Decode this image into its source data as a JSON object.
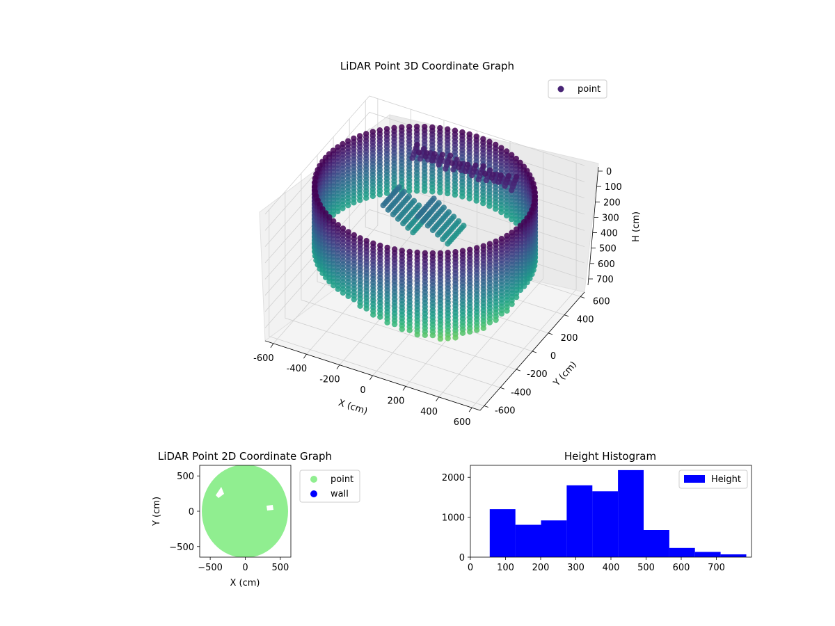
{
  "chart_data": [
    {
      "type": "scatter",
      "title": "LiDAR Point 3D Coordinate Graph",
      "xlabel": "X (cm)",
      "ylabel": "Y (cm)",
      "zlabel": "H (cm)",
      "xlim": [
        -650,
        650
      ],
      "ylim": [
        -650,
        650
      ],
      "zlim": [
        780,
        0
      ],
      "x_ticks": [
        -600,
        -400,
        -200,
        0,
        200,
        400,
        600
      ],
      "y_ticks": [
        -600,
        -400,
        -200,
        0,
        200,
        400,
        600
      ],
      "z_ticks": [
        0,
        100,
        200,
        300,
        400,
        500,
        600,
        700
      ],
      "legend": {
        "entries": [
          "point"
        ],
        "placement": "upper-right"
      },
      "colormap": "viridis",
      "ring_radius_cm": 600,
      "ring_height_cm": [
        0,
        400
      ],
      "grid": true
    },
    {
      "type": "scatter",
      "title": "LiDAR Point 2D Coordinate Graph",
      "xlabel": "X (cm)",
      "ylabel": "Y (cm)",
      "xlim": [
        -650,
        650
      ],
      "ylim": [
        -650,
        650
      ],
      "x_ticks": [
        -500,
        0,
        500
      ],
      "y_ticks": [
        -500,
        0,
        500
      ],
      "series": [
        {
          "name": "point",
          "color": "#90ee90",
          "shape": "disc",
          "radius_cm": 600
        },
        {
          "name": "wall",
          "color": "#0000ff",
          "points": []
        }
      ],
      "legend": {
        "placement": "outside-right"
      },
      "grid": false
    },
    {
      "type": "bar",
      "title": "Height Histogram",
      "legend": {
        "entries": [
          "Height"
        ],
        "placement": "upper-right"
      },
      "bar_color": "#0000ff",
      "xlim": [
        0,
        800
      ],
      "ylim": [
        0,
        2300
      ],
      "x_ticks": [
        0,
        100,
        200,
        300,
        400,
        500,
        600,
        700
      ],
      "y_ticks": [
        0,
        1000,
        2000
      ],
      "bins": [
        {
          "from": 55,
          "to": 128,
          "count": 1200
        },
        {
          "from": 128,
          "to": 201,
          "count": 810
        },
        {
          "from": 201,
          "to": 274,
          "count": 920
        },
        {
          "from": 274,
          "to": 347,
          "count": 1800
        },
        {
          "from": 347,
          "to": 420,
          "count": 1650
        },
        {
          "from": 420,
          "to": 493,
          "count": 2180
        },
        {
          "from": 493,
          "to": 566,
          "count": 680
        },
        {
          "from": 566,
          "to": 639,
          "count": 230
        },
        {
          "from": 639,
          "to": 712,
          "count": 130
        },
        {
          "from": 712,
          "to": 785,
          "count": 70
        }
      ],
      "grid": false
    }
  ]
}
